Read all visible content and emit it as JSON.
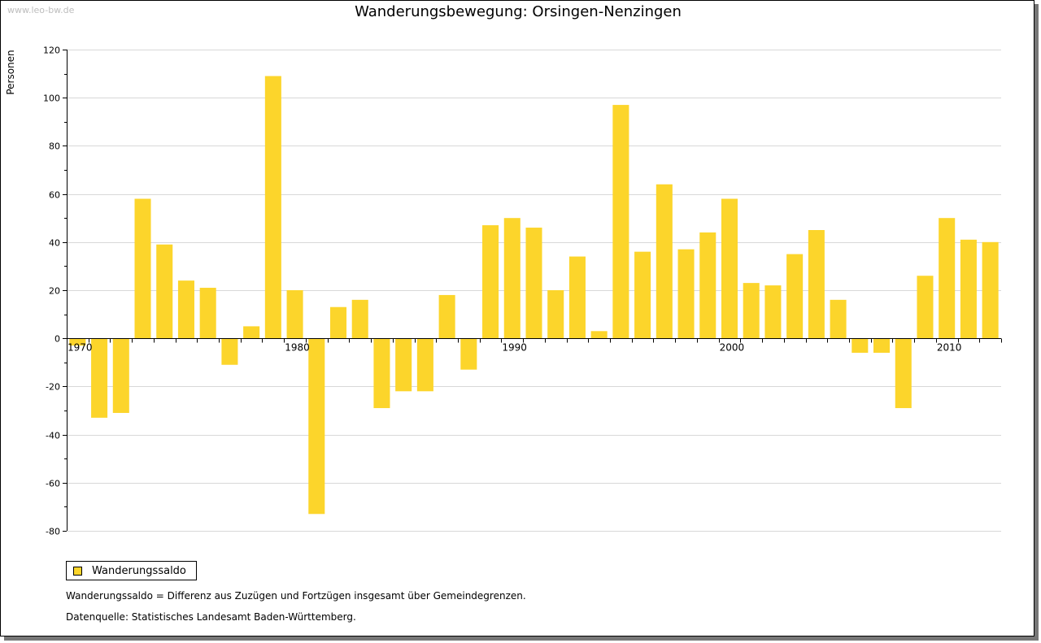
{
  "watermark": "www.leo-bw.de",
  "colors": {
    "bar": "#FCD52B",
    "grid": "#d8d8d8",
    "axis": "#000000"
  },
  "legend": {
    "label": "Wanderungssaldo",
    "swatch_color": "#FCD52B"
  },
  "notes": {
    "definition": "Wanderungssaldo = Differenz aus Zuzügen und Fortzügen insgesamt über Gemeindegrenzen.",
    "source": "Datenquelle: Statistisches Landesamt Baden-Württemberg."
  },
  "chart_data": {
    "type": "bar",
    "title": "Wanderungsbewegung: Orsingen-Nenzingen",
    "ylabel": "Personen",
    "xlabel": "",
    "ylim": [
      -80,
      120
    ],
    "yticks": [
      120,
      100,
      80,
      60,
      40,
      20,
      0,
      -20,
      -40,
      -60,
      -80
    ],
    "xtick_labels": [
      "1970",
      "1980",
      "1990",
      "2000",
      "2010"
    ],
    "grid": true,
    "legend_position": "bottom-left",
    "categories": [
      "1970",
      "1971",
      "1972",
      "1973",
      "1974",
      "1975",
      "1976",
      "1977",
      "1978",
      "1979",
      "1980",
      "1981",
      "1982",
      "1983",
      "1984",
      "1985",
      "1986",
      "1987",
      "1988",
      "1989",
      "1990",
      "1991",
      "1992",
      "1993",
      "1994",
      "1995",
      "1996",
      "1997",
      "1998",
      "1999",
      "2000",
      "2001",
      "2002",
      "2003",
      "2004",
      "2005",
      "2006",
      "2007",
      "2008",
      "2009",
      "2010",
      "2011",
      "2012"
    ],
    "series": [
      {
        "name": "Wanderungssaldo",
        "values": [
          -3,
          -33,
          -31,
          58,
          39,
          24,
          21,
          -11,
          5,
          109,
          20,
          -73,
          13,
          16,
          -29,
          -22,
          -22,
          18,
          -13,
          47,
          50,
          46,
          20,
          34,
          3,
          97,
          36,
          64,
          37,
          44,
          58,
          23,
          22,
          35,
          45,
          16,
          -6,
          -6,
          -29,
          26,
          50,
          41,
          40
        ]
      }
    ]
  }
}
